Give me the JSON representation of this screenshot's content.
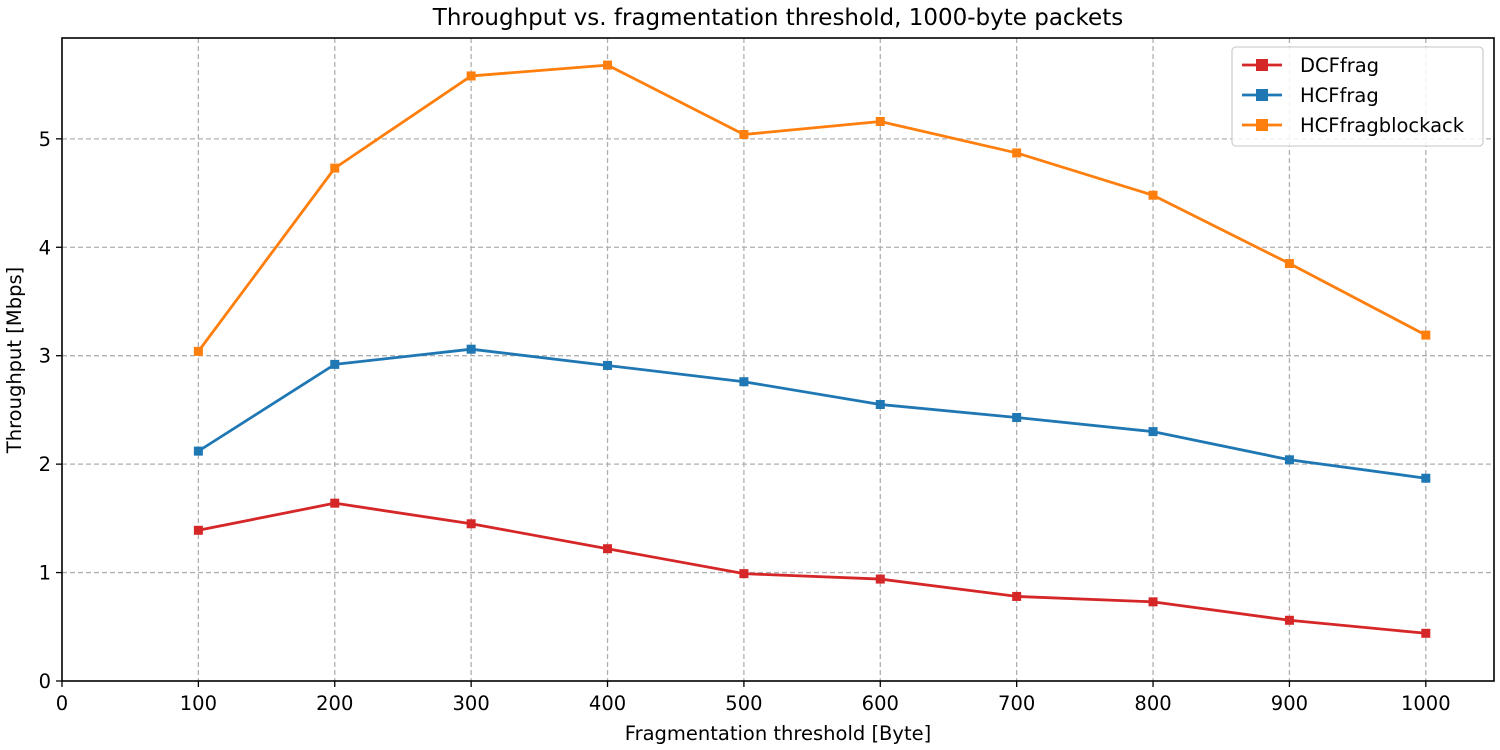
{
  "chart_data": {
    "type": "line",
    "title": "Throughput vs. fragmentation threshold, 1000-byte packets",
    "xlabel": "Fragmentation threshold [Byte]",
    "ylabel": "Throughput [Mbps]",
    "xlim": [
      0,
      1050
    ],
    "ylim": [
      0,
      5.93
    ],
    "xticks": [
      0,
      100,
      200,
      300,
      400,
      500,
      600,
      700,
      800,
      900,
      1000
    ],
    "yticks": [
      0,
      1,
      2,
      3,
      4,
      5
    ],
    "grid": true,
    "legend_position": "top-right",
    "x": [
      100,
      200,
      300,
      400,
      500,
      600,
      700,
      800,
      900,
      1000
    ],
    "series": [
      {
        "name": "DCFfrag",
        "color": "#d62728",
        "marker": "square",
        "values": [
          1.39,
          1.64,
          1.45,
          1.22,
          0.99,
          0.94,
          0.78,
          0.73,
          0.56,
          0.44
        ]
      },
      {
        "name": "HCFfrag",
        "color": "#1f77b4",
        "marker": "square",
        "values": [
          2.12,
          2.92,
          3.06,
          2.91,
          2.76,
          2.55,
          2.43,
          2.3,
          2.04,
          1.87
        ]
      },
      {
        "name": "HCFfragblockack",
        "color": "#ff7f0e",
        "marker": "square",
        "values": [
          3.04,
          4.73,
          5.58,
          5.68,
          5.04,
          5.16,
          4.87,
          4.48,
          3.85,
          3.19
        ]
      }
    ]
  }
}
